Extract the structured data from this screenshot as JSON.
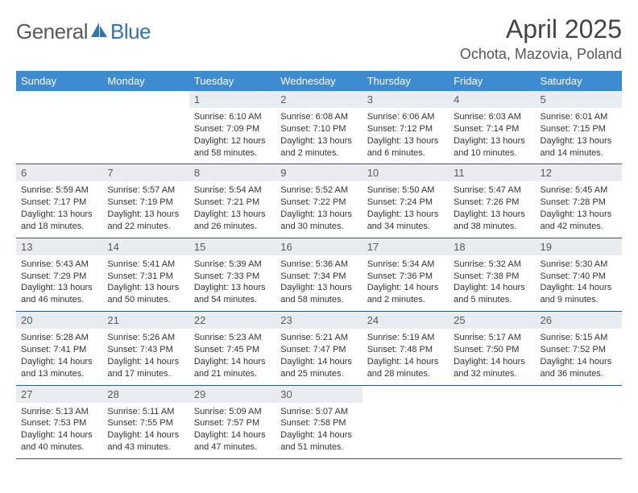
{
  "brand": {
    "word1": "General",
    "word2": "Blue"
  },
  "title": "April 2025",
  "location": "Ochota, Mazovia, Poland",
  "colors": {
    "header_bg": "#3d8bd0",
    "header_text": "#ffffff",
    "daynum_bg": "#e9edf1",
    "row_border": "#2f5b8a",
    "brand_gray": "#5a5a5a",
    "brand_blue": "#2f74b5"
  },
  "weekdays": [
    "Sunday",
    "Monday",
    "Tuesday",
    "Wednesday",
    "Thursday",
    "Friday",
    "Saturday"
  ],
  "weeks": [
    [
      null,
      null,
      {
        "n": "1",
        "sunrise": "6:10 AM",
        "sunset": "7:09 PM",
        "daylight": "12 hours and 58 minutes."
      },
      {
        "n": "2",
        "sunrise": "6:08 AM",
        "sunset": "7:10 PM",
        "daylight": "13 hours and 2 minutes."
      },
      {
        "n": "3",
        "sunrise": "6:06 AM",
        "sunset": "7:12 PM",
        "daylight": "13 hours and 6 minutes."
      },
      {
        "n": "4",
        "sunrise": "6:03 AM",
        "sunset": "7:14 PM",
        "daylight": "13 hours and 10 minutes."
      },
      {
        "n": "5",
        "sunrise": "6:01 AM",
        "sunset": "7:15 PM",
        "daylight": "13 hours and 14 minutes."
      }
    ],
    [
      {
        "n": "6",
        "sunrise": "5:59 AM",
        "sunset": "7:17 PM",
        "daylight": "13 hours and 18 minutes."
      },
      {
        "n": "7",
        "sunrise": "5:57 AM",
        "sunset": "7:19 PM",
        "daylight": "13 hours and 22 minutes."
      },
      {
        "n": "8",
        "sunrise": "5:54 AM",
        "sunset": "7:21 PM",
        "daylight": "13 hours and 26 minutes."
      },
      {
        "n": "9",
        "sunrise": "5:52 AM",
        "sunset": "7:22 PM",
        "daylight": "13 hours and 30 minutes."
      },
      {
        "n": "10",
        "sunrise": "5:50 AM",
        "sunset": "7:24 PM",
        "daylight": "13 hours and 34 minutes."
      },
      {
        "n": "11",
        "sunrise": "5:47 AM",
        "sunset": "7:26 PM",
        "daylight": "13 hours and 38 minutes."
      },
      {
        "n": "12",
        "sunrise": "5:45 AM",
        "sunset": "7:28 PM",
        "daylight": "13 hours and 42 minutes."
      }
    ],
    [
      {
        "n": "13",
        "sunrise": "5:43 AM",
        "sunset": "7:29 PM",
        "daylight": "13 hours and 46 minutes."
      },
      {
        "n": "14",
        "sunrise": "5:41 AM",
        "sunset": "7:31 PM",
        "daylight": "13 hours and 50 minutes."
      },
      {
        "n": "15",
        "sunrise": "5:39 AM",
        "sunset": "7:33 PM",
        "daylight": "13 hours and 54 minutes."
      },
      {
        "n": "16",
        "sunrise": "5:36 AM",
        "sunset": "7:34 PM",
        "daylight": "13 hours and 58 minutes."
      },
      {
        "n": "17",
        "sunrise": "5:34 AM",
        "sunset": "7:36 PM",
        "daylight": "14 hours and 2 minutes."
      },
      {
        "n": "18",
        "sunrise": "5:32 AM",
        "sunset": "7:38 PM",
        "daylight": "14 hours and 5 minutes."
      },
      {
        "n": "19",
        "sunrise": "5:30 AM",
        "sunset": "7:40 PM",
        "daylight": "14 hours and 9 minutes."
      }
    ],
    [
      {
        "n": "20",
        "sunrise": "5:28 AM",
        "sunset": "7:41 PM",
        "daylight": "14 hours and 13 minutes."
      },
      {
        "n": "21",
        "sunrise": "5:26 AM",
        "sunset": "7:43 PM",
        "daylight": "14 hours and 17 minutes."
      },
      {
        "n": "22",
        "sunrise": "5:23 AM",
        "sunset": "7:45 PM",
        "daylight": "14 hours and 21 minutes."
      },
      {
        "n": "23",
        "sunrise": "5:21 AM",
        "sunset": "7:47 PM",
        "daylight": "14 hours and 25 minutes."
      },
      {
        "n": "24",
        "sunrise": "5:19 AM",
        "sunset": "7:48 PM",
        "daylight": "14 hours and 28 minutes."
      },
      {
        "n": "25",
        "sunrise": "5:17 AM",
        "sunset": "7:50 PM",
        "daylight": "14 hours and 32 minutes."
      },
      {
        "n": "26",
        "sunrise": "5:15 AM",
        "sunset": "7:52 PM",
        "daylight": "14 hours and 36 minutes."
      }
    ],
    [
      {
        "n": "27",
        "sunrise": "5:13 AM",
        "sunset": "7:53 PM",
        "daylight": "14 hours and 40 minutes."
      },
      {
        "n": "28",
        "sunrise": "5:11 AM",
        "sunset": "7:55 PM",
        "daylight": "14 hours and 43 minutes."
      },
      {
        "n": "29",
        "sunrise": "5:09 AM",
        "sunset": "7:57 PM",
        "daylight": "14 hours and 47 minutes."
      },
      {
        "n": "30",
        "sunrise": "5:07 AM",
        "sunset": "7:58 PM",
        "daylight": "14 hours and 51 minutes."
      },
      null,
      null,
      null
    ]
  ],
  "labels": {
    "sunrise": "Sunrise:",
    "sunset": "Sunset:",
    "daylight": "Daylight:"
  }
}
